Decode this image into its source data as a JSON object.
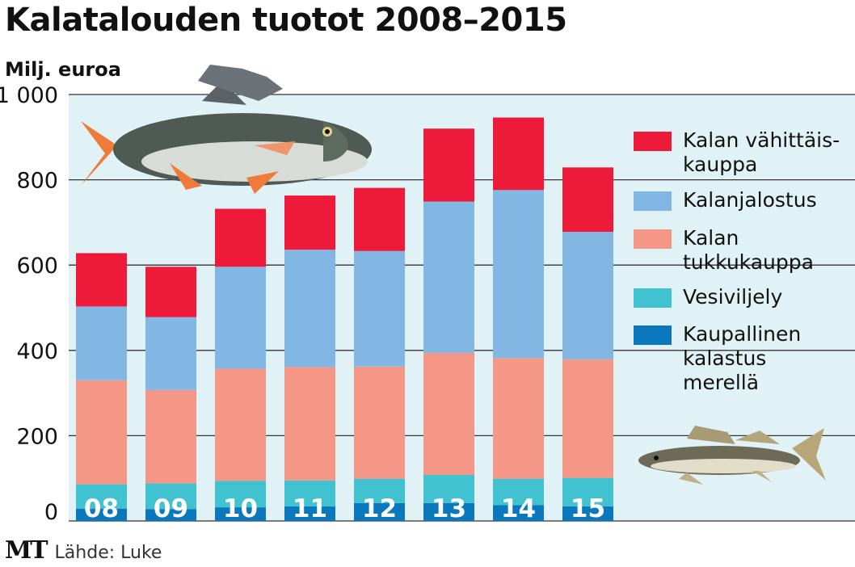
{
  "chart_data": {
    "type": "bar",
    "stacked": true,
    "title": "Kalatalouden tuotot 2008–2015",
    "ylabel": "Milj. euroa",
    "xlabel": "",
    "ylim": [
      0,
      1000
    ],
    "yticks": [
      0,
      200,
      400,
      600,
      800,
      1000
    ],
    "ytick_labels": [
      "0",
      "200",
      "400",
      "600",
      "800",
      "1 000"
    ],
    "grid": true,
    "legend_position": "right",
    "categories": [
      "08",
      "09",
      "10",
      "11",
      "12",
      "13",
      "14",
      "15"
    ],
    "series": [
      {
        "name": "Kaupallinen\nkalastus\nmerellä",
        "color": "#0b77bd",
        "values": [
          29,
          28,
          32,
          34,
          42,
          42,
          37,
          34
        ]
      },
      {
        "name": "Vesiviljely",
        "color": "#40c2d1",
        "values": [
          57,
          60,
          62,
          61,
          57,
          66,
          62,
          67
        ]
      },
      {
        "name": "Kalan\ntukkukauppa",
        "color": "#f49787",
        "values": [
          244,
          219,
          263,
          266,
          263,
          286,
          283,
          278
        ]
      },
      {
        "name": "Kalanjalostus",
        "color": "#83b7e3",
        "values": [
          173,
          171,
          239,
          275,
          271,
          355,
          394,
          299
        ]
      },
      {
        "name": "Kalan vähittäis-\nkauppa",
        "color": "#ed1a3a",
        "values": [
          125,
          118,
          136,
          127,
          148,
          171,
          170,
          151
        ]
      }
    ],
    "source": "Lähde: Luke"
  },
  "footer": {
    "logo": "MT",
    "source": "Lähde: Luke"
  },
  "colors": {
    "plot_bg": "#e1f2f7",
    "grid": "#333333"
  }
}
